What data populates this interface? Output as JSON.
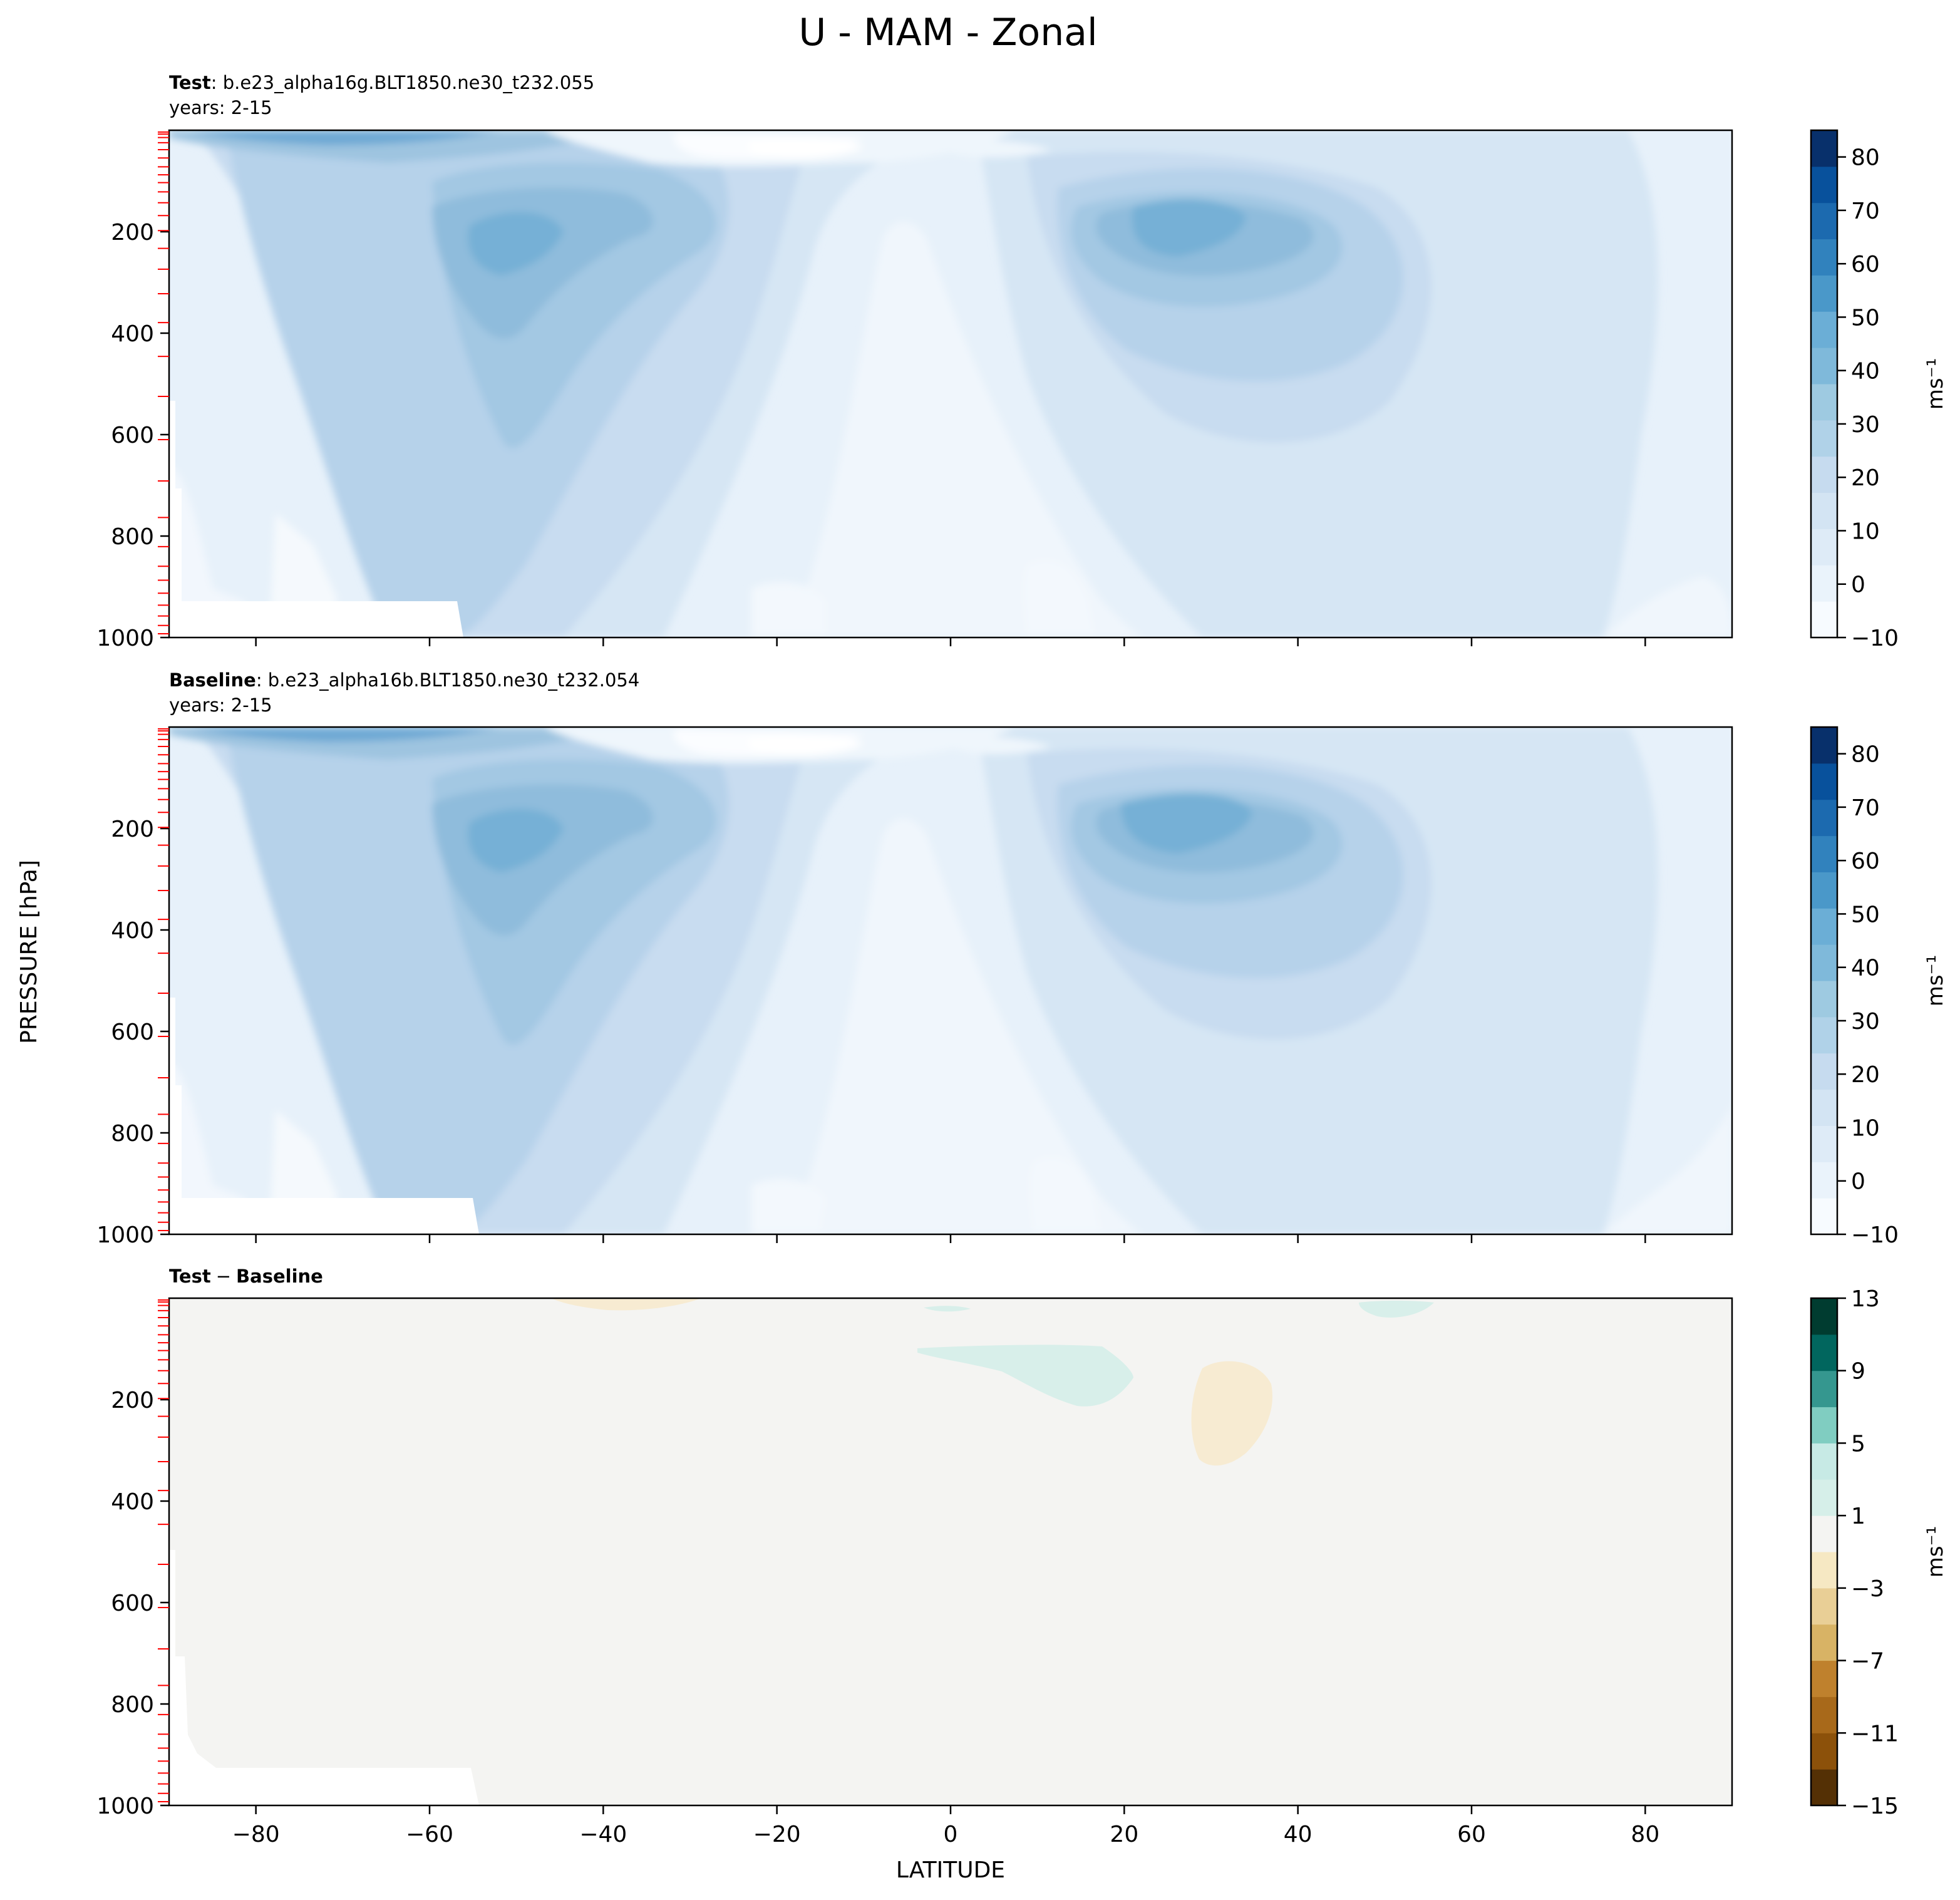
{
  "figure": {
    "title": "U - MAM - Zonal",
    "shared_ylabel": "PRESSURE [hPa]",
    "shared_xlabel": "LATITUDE"
  },
  "chart_data": [
    {
      "type": "contour",
      "panel": "test",
      "label_bold": "Test",
      "label_rest": ": b.e23_alpha16g.BLT1850.ne30_t232.055",
      "years": "years: 2-15",
      "x_ticks": [
        -80,
        -60,
        -40,
        -20,
        0,
        20,
        40,
        60,
        80
      ],
      "x_tick_labels": [],
      "xlim": [
        -90,
        90
      ],
      "y_ticks": [
        200,
        400,
        600,
        800,
        1000
      ],
      "ylim": [
        1000,
        0
      ],
      "colorbar": {
        "ticks": [
          80,
          70,
          60,
          50,
          40,
          30,
          20,
          10,
          0,
          -10
        ],
        "tick_labels": [
          "80",
          "70",
          "60",
          "50",
          "40",
          "30",
          "20",
          "10",
          "0",
          "−10"
        ],
        "range": [
          -10,
          85
        ],
        "unit": "ms⁻¹",
        "colormap": "Blues"
      },
      "features": [
        {
          "kind": "jet_max",
          "lat": -50,
          "pressure": 200,
          "value": 37
        },
        {
          "kind": "jet_max",
          "lat": 28,
          "pressure": 200,
          "value": 38
        },
        {
          "kind": "stratospheric_jet",
          "lat": -65,
          "pressure": 15,
          "value": 45
        },
        {
          "kind": "easterly_min",
          "lat": -15,
          "pressure": 30,
          "value": -8
        }
      ]
    },
    {
      "type": "contour",
      "panel": "baseline",
      "label_bold": "Baseline",
      "label_rest": ": b.e23_alpha16b.BLT1850.ne30_t232.054",
      "years": "years: 2-15",
      "x_ticks": [
        -80,
        -60,
        -40,
        -20,
        0,
        20,
        40,
        60,
        80
      ],
      "x_tick_labels": [],
      "xlim": [
        -90,
        90
      ],
      "y_ticks": [
        200,
        400,
        600,
        800,
        1000
      ],
      "ylim": [
        1000,
        0
      ],
      "colorbar": {
        "ticks": [
          80,
          70,
          60,
          50,
          40,
          30,
          20,
          10,
          0,
          -10
        ],
        "tick_labels": [
          "80",
          "70",
          "60",
          "50",
          "40",
          "30",
          "20",
          "10",
          "0",
          "−10"
        ],
        "range": [
          -10,
          85
        ],
        "unit": "ms⁻¹",
        "colormap": "Blues"
      },
      "features": [
        {
          "kind": "jet_max",
          "lat": -50,
          "pressure": 200,
          "value": 37
        },
        {
          "kind": "jet_max",
          "lat": 28,
          "pressure": 200,
          "value": 37
        },
        {
          "kind": "stratospheric_jet",
          "lat": -65,
          "pressure": 15,
          "value": 45
        },
        {
          "kind": "easterly_min",
          "lat": -15,
          "pressure": 30,
          "value": -8
        }
      ]
    },
    {
      "type": "contour",
      "panel": "difference",
      "label_bold_a": "Test",
      "label_mid": "−",
      "label_bold_b": "Baseline",
      "x_ticks": [
        -80,
        -60,
        -40,
        -20,
        0,
        20,
        40,
        60,
        80
      ],
      "x_tick_labels": [
        "−80",
        "−60",
        "−40",
        "−20",
        "0",
        "20",
        "40",
        "60",
        "80"
      ],
      "xlim": [
        -90,
        90
      ],
      "y_ticks": [
        200,
        400,
        600,
        800,
        1000
      ],
      "ylim": [
        1000,
        0
      ],
      "colorbar": {
        "ticks": [
          13,
          9,
          5,
          1,
          -3,
          -7,
          -11,
          -15
        ],
        "tick_labels": [
          "13",
          "9",
          "5",
          "1",
          "−3",
          "−7",
          "−11",
          "−15"
        ],
        "range": [
          -15,
          13
        ],
        "unit": "ms⁻¹",
        "colormap": "BrBG"
      },
      "features": [
        {
          "kind": "positive_anomaly",
          "lat": 10,
          "pressure": 130,
          "value": 2
        },
        {
          "kind": "negative_anomaly",
          "lat": 32,
          "pressure": 240,
          "value": -2
        },
        {
          "kind": "positive_anomaly",
          "lat": 51,
          "pressure": 20,
          "value": 2
        },
        {
          "kind": "negative_anomaly",
          "lat": -36,
          "pressure": 5,
          "value": -2
        }
      ]
    }
  ],
  "colors": {
    "blues": [
      "#f7fbff",
      "#eaf3fb",
      "#deebf7",
      "#d3e4f3",
      "#c6dbef",
      "#b0d2e8",
      "#9ecae1",
      "#7fb9da",
      "#6baed6",
      "#4a98c9",
      "#3182bd",
      "#1c6aaf",
      "#08519c",
      "#08306b"
    ],
    "brbg": [
      "#543005",
      "#8c510a",
      "#a8691a",
      "#bf812d",
      "#d8b365",
      "#e9cf96",
      "#f6e8c3",
      "#f4f4f2",
      "#d6efe9",
      "#c7eae5",
      "#80cdc1",
      "#35978f",
      "#01665e",
      "#003c30"
    ],
    "fill_diff": "#f4f4f2",
    "red_ticks": "#ff0000"
  }
}
